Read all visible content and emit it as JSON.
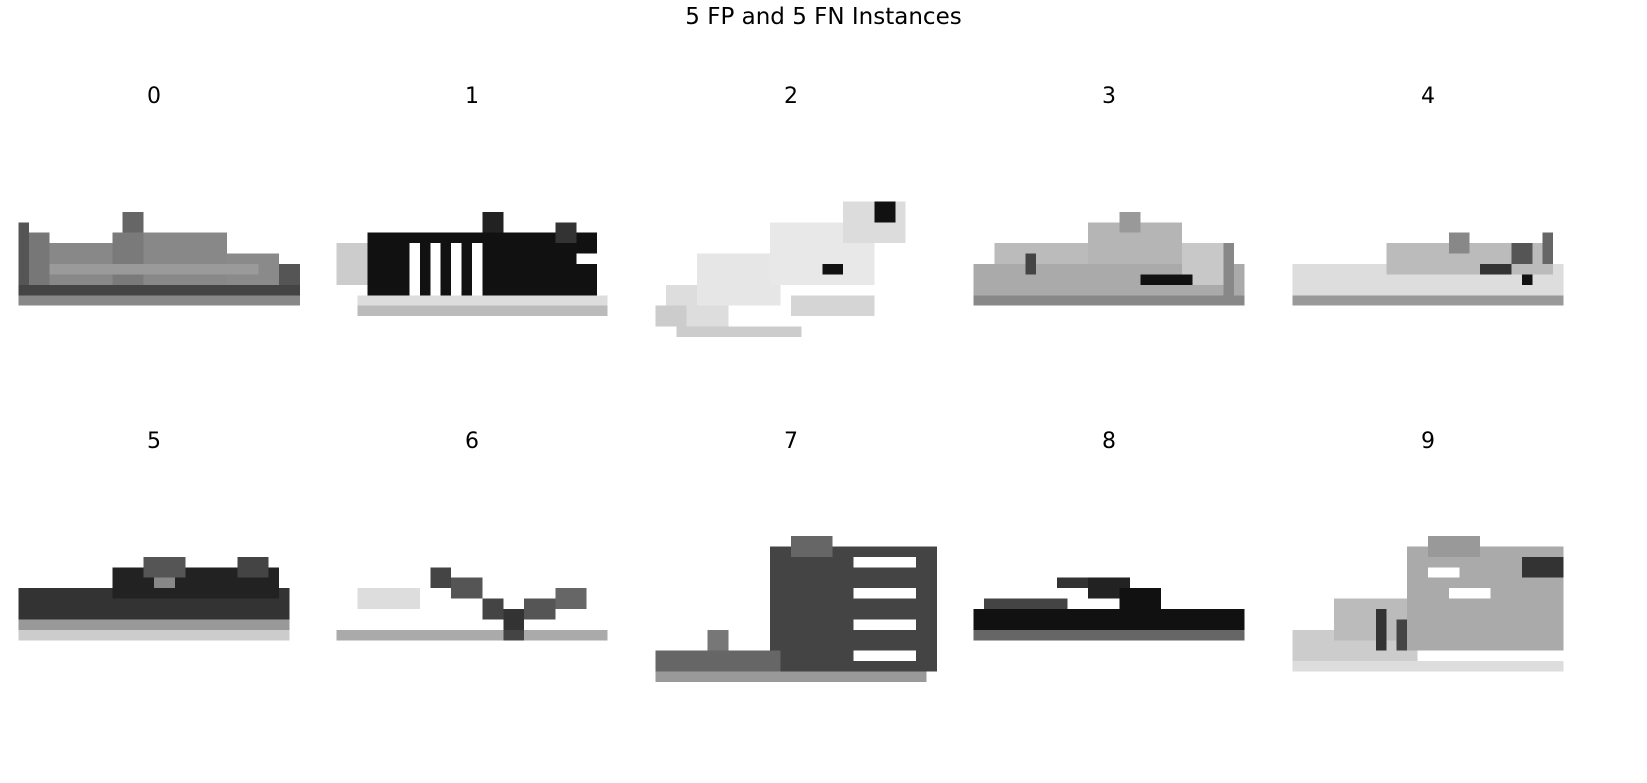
{
  "chart_data": {
    "type": "image_grid",
    "title": "5 FP and 5 FN Instances",
    "rows": 2,
    "cols": 5,
    "panels": [
      {
        "label": "0",
        "icon": "sneaker-gray-low-icon"
      },
      {
        "label": "1",
        "icon": "sneaker-black-striped-icon"
      },
      {
        "label": "2",
        "icon": "sneaker-white-icon"
      },
      {
        "label": "3",
        "icon": "sneaker-light-gray-icon"
      },
      {
        "label": "4",
        "icon": "sneaker-pale-icon"
      },
      {
        "label": "5",
        "icon": "sneaker-dark-gray-icon"
      },
      {
        "label": "6",
        "icon": "sandal-strap-icon"
      },
      {
        "label": "7",
        "icon": "sandal-heeled-icon"
      },
      {
        "label": "8",
        "icon": "sandal-flip-flop-icon"
      },
      {
        "label": "9",
        "icon": "sneaker-mixed-icon"
      }
    ],
    "colormap": "binary"
  }
}
